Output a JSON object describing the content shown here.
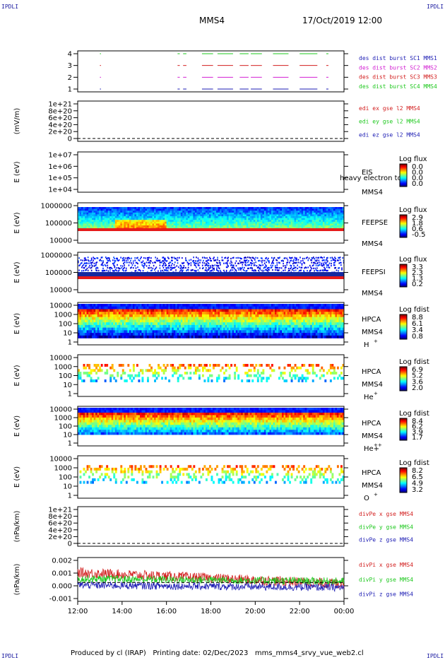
{
  "corner_label": "IPDLI",
  "header": {
    "spacecraft": "MMS4",
    "datetime": "17/Oct/2019 12:00"
  },
  "footer": "Produced by cl (IRAP)   Printing date: 02/Dec/2023   mms_mms4_srvy_vue_web2.cl",
  "time_axis": {
    "labels": [
      "12:00",
      "14:00",
      "16:00",
      "18:00",
      "20:00",
      "22:00",
      "00:00"
    ]
  },
  "chart_data": [
    {
      "type": "line",
      "id": "burst",
      "yticks": [
        "4",
        "3",
        "2",
        "1"
      ],
      "legend": [
        {
          "text": "des dist burst SC1 MMS1",
          "color": "#1e1eb4"
        },
        {
          "text": "des dist burst SC2 MMS2",
          "color": "#d21ed2"
        },
        {
          "text": "des dist burst SC3 MMS3",
          "color": "#d21e1e"
        },
        {
          "text": "des dist burst SC4 MMS4",
          "color": "#1ec81e"
        }
      ],
      "intervals_hours": [
        [
          1.0,
          1.05
        ],
        [
          4.5,
          4.6
        ],
        [
          4.75,
          4.9
        ],
        [
          5.6,
          6.1
        ],
        [
          6.3,
          7.0
        ],
        [
          7.3,
          7.7
        ],
        [
          7.8,
          8.3
        ],
        [
          8.8,
          9.5
        ],
        [
          10.0,
          10.8
        ],
        [
          11.2,
          11.3
        ]
      ]
    },
    {
      "type": "line",
      "id": "edi",
      "ylabel": "(mV/m)",
      "yticks": [
        "1e+21",
        "8e+20",
        "6e+20",
        "4e+20",
        "2e+20",
        "0"
      ],
      "legend": [
        {
          "text": "edi ex gse l2 MMS4",
          "color": "#d21e1e"
        },
        {
          "text": "edi ey gse l2 MMS4",
          "color": "#1ec81e"
        },
        {
          "text": "edi ez gse l2 MMS4",
          "color": "#1e1eb4"
        }
      ]
    },
    {
      "type": "heatmap",
      "id": "eis",
      "ylabel": "E (eV)",
      "yticks": [
        "1e+07",
        "1e+06",
        "1e+05",
        "1e+04"
      ],
      "side": [
        "EIS",
        "heavy electron to",
        "MMS4"
      ],
      "scale_title": "Log flux",
      "scale": [
        "0.0",
        "0.0",
        "0.0",
        "0.0"
      ]
    },
    {
      "type": "heatmap",
      "id": "feeps_e",
      "ylabel": "E (eV)",
      "yticks": [
        "1000000",
        "100000",
        "10000"
      ],
      "side": [
        "FEEPSE",
        "MMS4"
      ],
      "scale_title": "Log flux",
      "scale": [
        "2.9",
        "1.8",
        "0.6",
        "-0.5"
      ]
    },
    {
      "type": "heatmap",
      "id": "feeps_i",
      "ylabel": "E (eV)",
      "yticks": [
        "1000000",
        "100000",
        "10000"
      ],
      "side": [
        "FEEPSI",
        "MMS4"
      ],
      "scale_title": "Log flux",
      "scale": [
        "3.3",
        "2.3",
        "1.3",
        "0.2"
      ]
    },
    {
      "type": "heatmap",
      "id": "hpca_h",
      "ylabel": "E (eV)",
      "yticks": [
        "10000",
        "1000",
        "100",
        "10",
        "1"
      ],
      "side": [
        "HPCA",
        "MMS4",
        "H+"
      ],
      "scale_title": "Log fdist",
      "scale": [
        "8.8",
        "6.1",
        "3.4",
        "0.8"
      ]
    },
    {
      "type": "heatmap",
      "id": "hpca_he",
      "ylabel": "E (eV)",
      "yticks": [
        "10000",
        "1000",
        "100",
        "10",
        "1"
      ],
      "side": [
        "HPCA",
        "MMS4",
        "He+"
      ],
      "scale_title": "Log fdist",
      "scale": [
        "6.9",
        "5.2",
        "3.6",
        "2.0"
      ]
    },
    {
      "type": "heatmap",
      "id": "hpca_hepp",
      "ylabel": "E (eV)",
      "yticks": [
        "10000",
        "1000",
        "100",
        "10",
        "1"
      ],
      "side": [
        "HPCA",
        "MMS4",
        "He++"
      ],
      "scale_title": "Log fdist",
      "scale": [
        "8.4",
        "6.2",
        "3.9",
        "1.7"
      ]
    },
    {
      "type": "heatmap",
      "id": "hpca_o",
      "ylabel": "E (eV)",
      "yticks": [
        "10000",
        "1000",
        "100",
        "10",
        "1"
      ],
      "side": [
        "HPCA",
        "MMS4",
        "O+"
      ],
      "scale_title": "Log fdist",
      "scale": [
        "8.2",
        "6.5",
        "4.9",
        "3.2"
      ]
    },
    {
      "type": "line",
      "id": "divpe",
      "ylabel": "(nPa/km)",
      "yticks": [
        "1e+21",
        "8e+20",
        "6e+20",
        "4e+20",
        "2e+20",
        "0"
      ],
      "legend": [
        {
          "text": "divPe x gse MMS4",
          "color": "#d21e1e"
        },
        {
          "text": "divPe y gse MMS4",
          "color": "#1ec81e"
        },
        {
          "text": "divPe z gse MMS4",
          "color": "#1e1eb4"
        }
      ]
    },
    {
      "type": "line",
      "id": "divpi",
      "ylabel": "(nPa/km)",
      "yticks": [
        "0.002",
        "0.001",
        "0.000",
        "-0.001"
      ],
      "ylim": [
        -0.0015,
        0.002
      ],
      "legend": [
        {
          "text": "divPi x gse MMS4",
          "color": "#d21e1e"
        },
        {
          "text": "divPi y gse MMS4",
          "color": "#1ec81e"
        },
        {
          "text": "divPi z gse MMS4",
          "color": "#1e1eb4"
        }
      ],
      "series": [
        {
          "name": "divPi x gse MMS4",
          "color": "#d21e1e",
          "mean_start": 0.0008,
          "mean_end": -0.0001,
          "spread": 0.0004
        },
        {
          "name": "divPi y gse MMS4",
          "color": "#1ec81e",
          "mean_start": 0.0003,
          "mean_end": 0.0001,
          "spread": 0.0003
        },
        {
          "name": "divPi z gse MMS4",
          "color": "#1e1eb4",
          "mean_start": -0.0002,
          "mean_end": -0.0004,
          "spread": 0.0003
        }
      ]
    }
  ]
}
